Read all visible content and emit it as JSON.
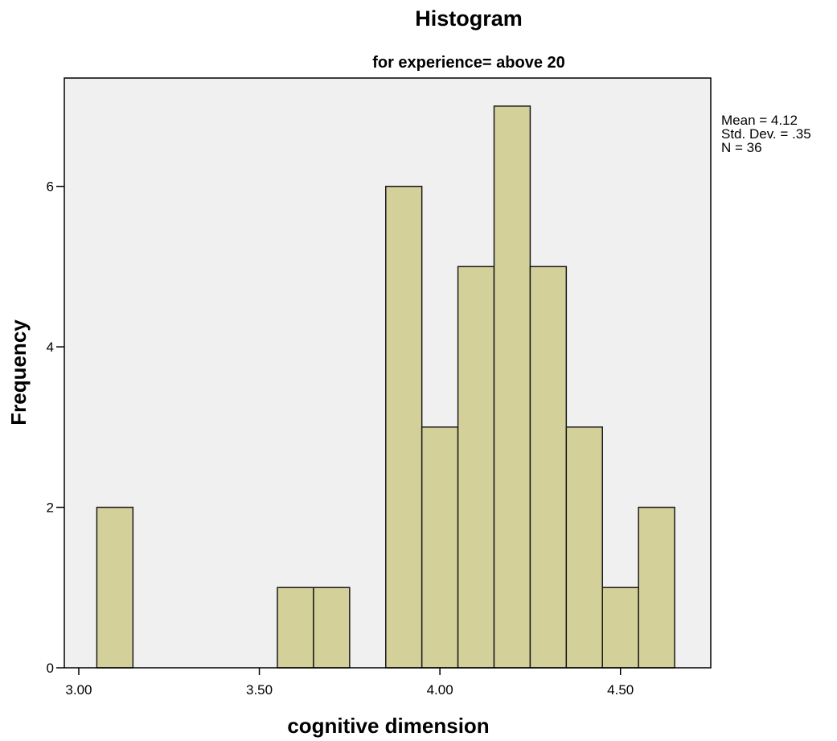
{
  "chart_data": {
    "type": "bar",
    "subtype": "histogram",
    "title": "Histogram",
    "subtitle": "for experience= above 20",
    "xlabel": "cognitive dimension",
    "ylabel": "Frequency",
    "bin_width": 0.1,
    "bins": [
      {
        "start": 3.05,
        "end": 3.15,
        "count": 2
      },
      {
        "start": 3.55,
        "end": 3.65,
        "count": 1
      },
      {
        "start": 3.65,
        "end": 3.75,
        "count": 1
      },
      {
        "start": 3.85,
        "end": 3.95,
        "count": 6
      },
      {
        "start": 3.95,
        "end": 4.05,
        "count": 3
      },
      {
        "start": 4.05,
        "end": 4.15,
        "count": 5
      },
      {
        "start": 4.15,
        "end": 4.25,
        "count": 7
      },
      {
        "start": 4.25,
        "end": 4.35,
        "count": 5
      },
      {
        "start": 4.35,
        "end": 4.45,
        "count": 3
      },
      {
        "start": 4.45,
        "end": 4.55,
        "count": 1
      },
      {
        "start": 4.55,
        "end": 4.65,
        "count": 2
      }
    ],
    "xlim": [
      2.96,
      4.75
    ],
    "ylim": [
      0,
      7.35
    ],
    "x_ticks": [
      {
        "value": 3.0,
        "label": "3.00"
      },
      {
        "value": 3.5,
        "label": "3.50"
      },
      {
        "value": 4.0,
        "label": "4.00"
      },
      {
        "value": 4.5,
        "label": "4.50"
      }
    ],
    "y_ticks": [
      {
        "value": 0,
        "label": "0"
      },
      {
        "value": 2,
        "label": "2"
      },
      {
        "value": 4,
        "label": "4"
      },
      {
        "value": 6,
        "label": "6"
      }
    ],
    "stats": [
      "Mean = 4.12",
      "Std. Dev. = .35",
      "N = 36"
    ],
    "grid": false,
    "legend": "none",
    "colors": {
      "bar_fill": "#d4d09a",
      "bar_stroke": "#1a1a1a",
      "plot_background": "#f0f0f0",
      "frame": "#000000"
    }
  }
}
